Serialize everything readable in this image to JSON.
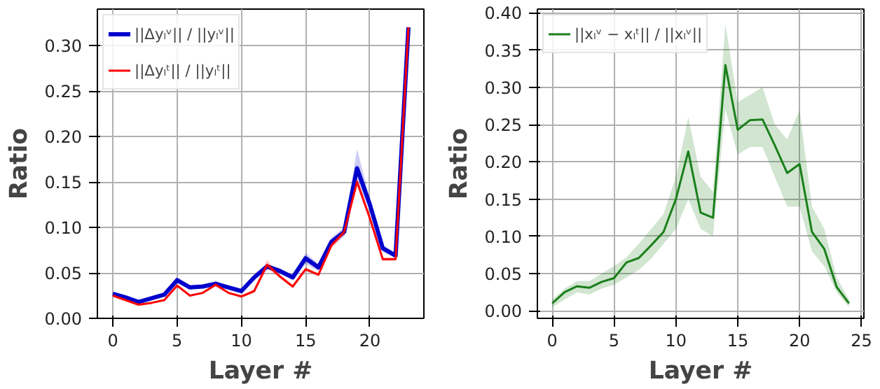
{
  "chart_data": [
    {
      "type": "line",
      "xlabel": "Layer #",
      "ylabel": "Ratio",
      "x": [
        0,
        1,
        2,
        3,
        4,
        5,
        6,
        7,
        8,
        9,
        10,
        11,
        12,
        13,
        14,
        15,
        16,
        17,
        18,
        19,
        20,
        21,
        22,
        23
      ],
      "xlim": [
        -1.2,
        24.2
      ],
      "ylim": [
        0,
        0.34
      ],
      "xticks": [
        0,
        5,
        10,
        15,
        20
      ],
      "yticks": [
        {
          "value": 0,
          "label": "0.00"
        },
        {
          "value": 0.05,
          "label": "0.05"
        },
        {
          "value": 0.1,
          "label": "0.10"
        },
        {
          "value": 0.15,
          "label": "0.15"
        },
        {
          "value": 0.2,
          "label": "0.20"
        },
        {
          "value": 0.25,
          "label": "0.25"
        },
        {
          "value": 0.3,
          "label": "0.30"
        }
      ],
      "grid": true,
      "legend": "top left",
      "series": [
        {
          "name": "||Δyₗᵛ|| / ||yₗᵛ||",
          "color": "#0000cc",
          "values": [
            0.027,
            0.023,
            0.018,
            0.022,
            0.026,
            0.042,
            0.034,
            0.035,
            0.038,
            0.034,
            0.03,
            0.045,
            0.057,
            0.052,
            0.045,
            0.066,
            0.056,
            0.084,
            0.095,
            0.165,
            0.125,
            0.077,
            0.069,
            0.32
          ],
          "lower": [
            0.025,
            0.021,
            0.016,
            0.02,
            0.024,
            0.039,
            0.032,
            0.033,
            0.035,
            0.032,
            0.028,
            0.042,
            0.054,
            0.049,
            0.042,
            0.06,
            0.052,
            0.079,
            0.09,
            0.15,
            0.118,
            0.073,
            0.066,
            0.32
          ],
          "upper": [
            0.029,
            0.025,
            0.02,
            0.024,
            0.028,
            0.045,
            0.036,
            0.037,
            0.041,
            0.036,
            0.032,
            0.048,
            0.06,
            0.055,
            0.048,
            0.072,
            0.06,
            0.089,
            0.1,
            0.186,
            0.132,
            0.081,
            0.072,
            0.32
          ]
        },
        {
          "name": "||Δyₗᵗ|| / ||yₗᵗ||",
          "color": "#ff0000",
          "values": [
            0.025,
            0.02,
            0.015,
            0.017,
            0.02,
            0.036,
            0.025,
            0.028,
            0.037,
            0.028,
            0.024,
            0.03,
            0.059,
            0.046,
            0.035,
            0.054,
            0.048,
            0.08,
            0.095,
            0.15,
            0.11,
            0.065,
            0.065,
            0.32
          ],
          "lower": [
            0.024,
            0.019,
            0.014,
            0.016,
            0.019,
            0.034,
            0.024,
            0.027,
            0.035,
            0.027,
            0.023,
            0.028,
            0.055,
            0.044,
            0.033,
            0.052,
            0.046,
            0.077,
            0.092,
            0.146,
            0.106,
            0.063,
            0.063,
            0.32
          ],
          "upper": [
            0.026,
            0.021,
            0.016,
            0.018,
            0.021,
            0.038,
            0.026,
            0.029,
            0.039,
            0.029,
            0.025,
            0.032,
            0.064,
            0.048,
            0.037,
            0.056,
            0.05,
            0.083,
            0.098,
            0.154,
            0.114,
            0.067,
            0.067,
            0.32
          ]
        }
      ]
    },
    {
      "type": "line",
      "xlabel": "Layer #",
      "ylabel": "Ratio",
      "x": [
        0,
        1,
        2,
        3,
        4,
        5,
        6,
        7,
        8,
        9,
        10,
        11,
        12,
        13,
        14,
        15,
        16,
        17,
        18,
        19,
        20,
        21,
        22,
        23,
        24
      ],
      "xlim": [
        -1.2,
        25.2
      ],
      "ylim": [
        -0.01,
        0.405
      ],
      "xticks": [
        0,
        5,
        10,
        15,
        20,
        25
      ],
      "yticks": [
        {
          "value": 0,
          "label": "0.00"
        },
        {
          "value": 0.05,
          "label": "0.05"
        },
        {
          "value": 0.1,
          "label": "0.10"
        },
        {
          "value": 0.15,
          "label": "0.15"
        },
        {
          "value": 0.2,
          "label": "0.20"
        },
        {
          "value": 0.25,
          "label": "0.25"
        },
        {
          "value": 0.3,
          "label": "0.30"
        },
        {
          "value": 0.35,
          "label": "0.35"
        },
        {
          "value": 0.4,
          "label": "0.40"
        }
      ],
      "grid": true,
      "legend": "top left",
      "series": [
        {
          "name": "||xₗᵛ − xₗᵗ|| / ||xₗᵛ||",
          "color": "#1a7f1a",
          "values": [
            0.01,
            0.025,
            0.033,
            0.031,
            0.039,
            0.044,
            0.065,
            0.071,
            0.088,
            0.106,
            0.15,
            0.214,
            0.132,
            0.125,
            0.33,
            0.243,
            0.256,
            0.257,
            0.222,
            0.185,
            0.197,
            0.106,
            0.083,
            0.032,
            0.01
          ],
          "lower": [
            0.005,
            0.015,
            0.025,
            0.022,
            0.03,
            0.035,
            0.045,
            0.055,
            0.07,
            0.09,
            0.11,
            0.15,
            0.11,
            0.1,
            0.27,
            0.21,
            0.22,
            0.22,
            0.18,
            0.14,
            0.14,
            0.08,
            0.06,
            0.025,
            0.005
          ],
          "upper": [
            0.015,
            0.03,
            0.04,
            0.04,
            0.05,
            0.06,
            0.072,
            0.09,
            0.11,
            0.13,
            0.18,
            0.26,
            0.18,
            0.16,
            0.385,
            0.28,
            0.29,
            0.3,
            0.25,
            0.23,
            0.27,
            0.14,
            0.11,
            0.045,
            0.015
          ]
        }
      ]
    }
  ]
}
